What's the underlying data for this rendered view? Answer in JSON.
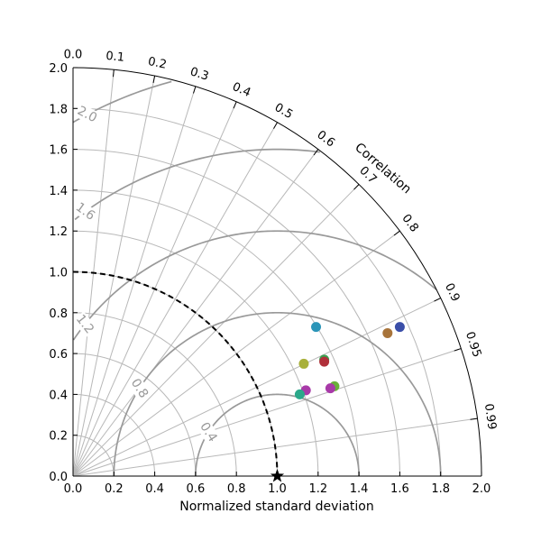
{
  "chart_data": {
    "type": "scatter",
    "subtype": "taylor-diagram",
    "title": "",
    "xlabel": "Normalized standard deviation",
    "angular_label": "Correlation",
    "std_range": [
      0.0,
      2.0
    ],
    "std_ticks": [
      "0.0",
      "0.2",
      "0.4",
      "0.6",
      "0.8",
      "1.0",
      "1.2",
      "1.4",
      "1.6",
      "1.8",
      "2.0"
    ],
    "correlation_ticks": [
      0.0,
      0.1,
      0.2,
      0.3,
      0.4,
      0.5,
      0.6,
      0.7,
      0.8,
      0.9,
      0.95,
      0.99
    ],
    "correlation_tick_labels": [
      "0.0",
      "0.1",
      "0.2",
      "0.3",
      "0.4",
      "0.5",
      "0.6",
      "0.7",
      "0.8",
      "0.9",
      "0.95",
      "0.99"
    ],
    "grid": true,
    "rms_contours": [
      0.4,
      0.8,
      1.2,
      1.6,
      2.0
    ],
    "rms_contour_labels": [
      "0.4",
      "0.8",
      "1.2",
      "1.6",
      "2.0"
    ],
    "reference": {
      "std": 1.0,
      "correlation": 1.0,
      "marker": "star",
      "color": "#000000"
    },
    "reference_arc_std": 1.0,
    "points": [
      {
        "x": 1.6,
        "y": 0.73,
        "color": "#3a4ea8"
      },
      {
        "x": 1.54,
        "y": 0.7,
        "color": "#a8743a"
      },
      {
        "x": 1.19,
        "y": 0.73,
        "color": "#2b95b8"
      },
      {
        "x": 1.23,
        "y": 0.57,
        "color": "#3aa050"
      },
      {
        "x": 1.23,
        "y": 0.56,
        "color": "#b0303a"
      },
      {
        "x": 1.13,
        "y": 0.55,
        "color": "#a8b03a"
      },
      {
        "x": 1.28,
        "y": 0.44,
        "color": "#6ab03a"
      },
      {
        "x": 1.26,
        "y": 0.43,
        "color": "#a83aa8"
      },
      {
        "x": 1.14,
        "y": 0.42,
        "color": "#a83aa8"
      },
      {
        "x": 1.11,
        "y": 0.4,
        "color": "#2ba88a"
      }
    ]
  }
}
